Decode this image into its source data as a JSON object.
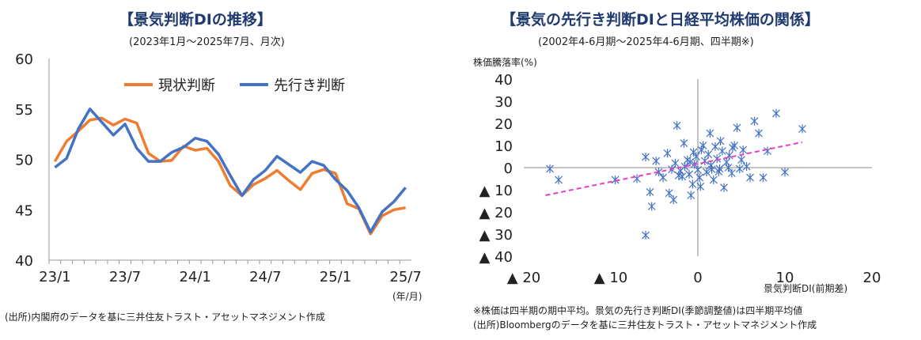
{
  "left": {
    "title": "【景気判断DIの推移】",
    "subtitle": "(2023年1月～2025年7月、月次)",
    "unit_label": "(年/月)",
    "source": "(出所)内閣府のデータを基に三井住友トラスト・アセットマネジメント作成"
  },
  "right": {
    "title": "【景気の先行き判断DIと日経平均株価の関係】",
    "subtitle": "(2002年4-6月期～2025年4-6月期、四半期※)",
    "ylabel": "株価騰落率(%)",
    "xlabel": "景気判断DI(前期差)",
    "note1": "※株価は四半期の期中平均。景気の先行き判断DI(季節調整値)は四半期平均値",
    "source": "(出所)Bloombergのデータを基に三井住友トラスト・アセットマネジメント作成"
  },
  "colors": {
    "current": "#ed7d31",
    "future": "#4472c4",
    "scatter": "#4472c4",
    "trend": "#e83fc8"
  },
  "chart_data": [
    {
      "type": "line",
      "title": "【景気判断DIの推移】",
      "x": [
        "23/1",
        "23/2",
        "23/3",
        "23/4",
        "23/5",
        "23/6",
        "23/7",
        "23/8",
        "23/9",
        "23/10",
        "23/11",
        "23/12",
        "24/1",
        "24/2",
        "24/3",
        "24/4",
        "24/5",
        "24/6",
        "24/7",
        "24/8",
        "24/9",
        "24/10",
        "24/11",
        "24/12",
        "25/1",
        "25/2",
        "25/3",
        "25/4",
        "25/5",
        "25/6",
        "25/7"
      ],
      "xticks": [
        "23/1",
        "23/7",
        "24/1",
        "24/7",
        "25/1",
        "25/7"
      ],
      "ylim": [
        40,
        60
      ],
      "yticks": [
        40,
        45,
        50,
        55,
        60
      ],
      "legend_position": "top",
      "series": [
        {
          "name": "現状判断",
          "key": "current",
          "values": [
            49.8,
            51.8,
            52.8,
            53.9,
            54.1,
            53.4,
            54.0,
            53.6,
            50.6,
            49.8,
            49.9,
            51.3,
            50.9,
            51.1,
            49.8,
            47.4,
            46.4,
            47.5,
            48.1,
            48.9,
            47.9,
            47.0,
            48.6,
            49.0,
            48.6,
            45.6,
            45.1,
            42.6,
            44.4,
            45.0,
            45.2
          ]
        },
        {
          "name": "先行き判断",
          "key": "future",
          "values": [
            49.2,
            50.1,
            53.0,
            55.0,
            53.7,
            52.4,
            53.5,
            51.1,
            49.8,
            49.8,
            50.7,
            51.2,
            52.1,
            51.8,
            50.5,
            48.4,
            46.4,
            48.0,
            48.9,
            50.3,
            49.5,
            48.7,
            49.8,
            49.4,
            48.0,
            46.9,
            45.2,
            42.8,
            44.8,
            45.8,
            47.2
          ]
        }
      ]
    },
    {
      "type": "scatter",
      "title": "【景気の先行き判断DIと日経平均株価の関係】",
      "xlabel": "景気判断DI(前期差)",
      "ylabel": "株価騰落率(%)",
      "xlim": [
        -20,
        20
      ],
      "ylim": [
        -40,
        40
      ],
      "xticks": [
        -20,
        -10,
        0,
        10,
        20
      ],
      "xtick_labels": [
        "▲ 20",
        "▲ 10",
        "0",
        "10",
        "20"
      ],
      "yticks": [
        40,
        30,
        20,
        10,
        0,
        -10,
        -20,
        -30,
        -40
      ],
      "ytick_labels": [
        "40",
        "30",
        "20",
        "10",
        "0",
        "▲ 10",
        "▲ 20",
        "▲ 30",
        "▲ 40"
      ],
      "trendline": {
        "x": [
          -17.5,
          12
        ],
        "y": [
          -12.5,
          11.5
        ]
      },
      "points": [
        [
          -17.0,
          -0.5
        ],
        [
          -16.0,
          -5.5
        ],
        [
          -9.5,
          -5.5
        ],
        [
          -6.0,
          -30.5
        ],
        [
          -7.0,
          -5.0
        ],
        [
          -6.0,
          4.8
        ],
        [
          -5.3,
          -17.5
        ],
        [
          -4.5,
          -2.0
        ],
        [
          -4.0,
          -4.5
        ],
        [
          -3.5,
          6.5
        ],
        [
          -3.3,
          -11.5
        ],
        [
          -2.8,
          -14.5
        ],
        [
          -2.6,
          2.0
        ],
        [
          -2.4,
          19.0
        ],
        [
          -2.0,
          -1.5
        ],
        [
          -1.8,
          -4.0
        ],
        [
          -1.5,
          0.5
        ],
        [
          -1.2,
          3.5
        ],
        [
          -1.0,
          -3.0
        ],
        [
          -0.8,
          -12.5
        ],
        [
          -0.6,
          -7.5
        ],
        [
          -0.4,
          1.5
        ],
        [
          -0.2,
          5.0
        ],
        [
          0.0,
          -1.0
        ],
        [
          0.2,
          -4.5
        ],
        [
          0.4,
          8.0
        ],
        [
          0.6,
          10.0
        ],
        [
          0.8,
          3.0
        ],
        [
          1.0,
          -2.0
        ],
        [
          1.2,
          6.0
        ],
        [
          1.4,
          15.5
        ],
        [
          1.6,
          -0.8
        ],
        [
          1.8,
          -5.5
        ],
        [
          2.0,
          9.5
        ],
        [
          2.2,
          4.0
        ],
        [
          2.4,
          -1.8
        ],
        [
          2.6,
          12.0
        ],
        [
          2.8,
          7.5
        ],
        [
          3.0,
          -9.0
        ],
        [
          3.3,
          2.5
        ],
        [
          3.6,
          5.5
        ],
        [
          3.9,
          -2.5
        ],
        [
          4.2,
          10.0
        ],
        [
          4.5,
          18.0
        ],
        [
          4.8,
          -0.5
        ],
        [
          5.2,
          8.0
        ],
        [
          5.6,
          0.5
        ],
        [
          6.0,
          -4.5
        ],
        [
          6.5,
          21.0
        ],
        [
          7.0,
          15.5
        ],
        [
          7.5,
          -4.5
        ],
        [
          8.0,
          7.5
        ],
        [
          9.0,
          24.5
        ],
        [
          10.0,
          -2.0
        ],
        [
          12.0,
          17.5
        ],
        [
          -5.5,
          -11.0
        ],
        [
          -4.8,
          3.0
        ],
        [
          -2.2,
          -3.5
        ],
        [
          1.5,
          1.0
        ],
        [
          2.5,
          -0.5
        ],
        [
          -0.5,
          7.0
        ],
        [
          0.3,
          -8.5
        ],
        [
          -1.6,
          11.0
        ],
        [
          3.5,
          0.0
        ],
        [
          -3.0,
          -0.8
        ],
        [
          4.0,
          9.0
        ],
        [
          5.0,
          3.5
        ],
        [
          -0.9,
          2.5
        ]
      ]
    }
  ]
}
